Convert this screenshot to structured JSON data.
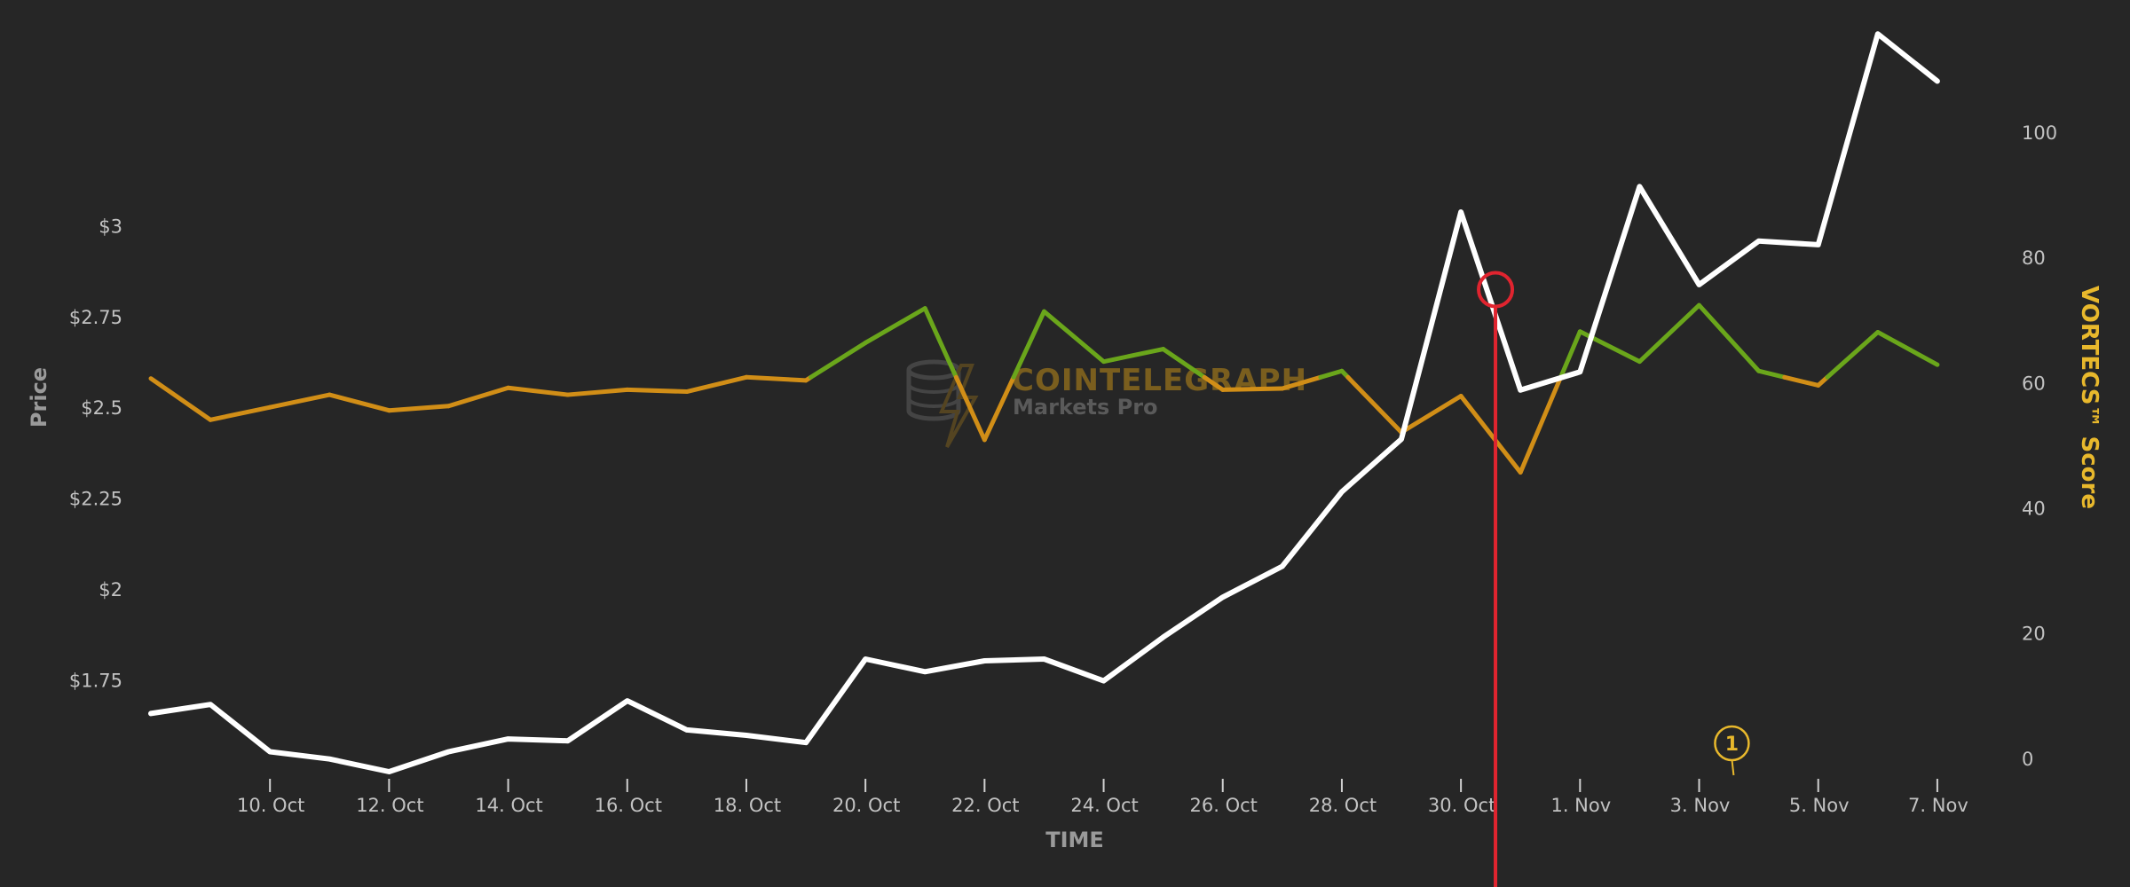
{
  "chart_data": {
    "type": "line",
    "title": "",
    "xlabel": "TIME",
    "ylabel": "Price",
    "y2label": "VORTECS™ Score",
    "x_tick_labels": [
      "10. Oct",
      "12. Oct",
      "14. Oct",
      "16. Oct",
      "18. Oct",
      "20. Oct",
      "22. Oct",
      "24. Oct",
      "26. Oct",
      "28. Oct",
      "30. Oct",
      "1. Nov",
      "3. Nov",
      "5. Nov",
      "7. Nov"
    ],
    "x_range": [
      "2021-10-08",
      "2021-11-08"
    ],
    "y_ticks": [
      {
        "value": 1.75,
        "label": "$1.75"
      },
      {
        "value": 2.0,
        "label": "$2"
      },
      {
        "value": 2.25,
        "label": "$2.25"
      },
      {
        "value": 2.5,
        "label": "$2.5"
      },
      {
        "value": 2.75,
        "label": "$2.75"
      },
      {
        "value": 3.0,
        "label": "$3"
      }
    ],
    "y_range": [
      1.5,
      3.55
    ],
    "y2_ticks": [
      {
        "value": 0,
        "label": "0"
      },
      {
        "value": 20,
        "label": "20"
      },
      {
        "value": 40,
        "label": "40"
      },
      {
        "value": 60,
        "label": "60"
      },
      {
        "value": 80,
        "label": "80"
      },
      {
        "value": 100,
        "label": "100"
      }
    ],
    "y2_range": [
      -2,
      117
    ],
    "series": [
      {
        "axis": "price",
        "color": "#ffffff",
        "points": [
          [
            "2021-10-08",
            1.66
          ],
          [
            "2021-10-09",
            1.685
          ],
          [
            "2021-10-10",
            1.555
          ],
          [
            "2021-10-11",
            1.535
          ],
          [
            "2021-10-12",
            1.5
          ],
          [
            "2021-10-13",
            1.555
          ],
          [
            "2021-10-14",
            1.59
          ],
          [
            "2021-10-15",
            1.585
          ],
          [
            "2021-10-16",
            1.695
          ],
          [
            "2021-10-17",
            1.615
          ],
          [
            "2021-10-18",
            1.6
          ],
          [
            "2021-10-19",
            1.58
          ],
          [
            "2021-10-20",
            1.81
          ],
          [
            "2021-10-21",
            1.775
          ],
          [
            "2021-10-22",
            1.805
          ],
          [
            "2021-10-23",
            1.81
          ],
          [
            "2021-10-24",
            1.75
          ],
          [
            "2021-10-25",
            1.87
          ],
          [
            "2021-10-26",
            1.98
          ],
          [
            "2021-10-27",
            2.065
          ],
          [
            "2021-10-28",
            2.27
          ],
          [
            "2021-10-29",
            2.415
          ],
          [
            "2021-10-30",
            3.04
          ],
          [
            "2021-10-31",
            2.55
          ],
          [
            "2021-11-01",
            2.6
          ],
          [
            "2021-11-02",
            3.11
          ],
          [
            "2021-11-03",
            2.84
          ],
          [
            "2021-11-04",
            2.96
          ],
          [
            "2021-11-05",
            2.95
          ],
          [
            "2021-11-06",
            3.53
          ],
          [
            "2021-11-07",
            3.4
          ]
        ]
      },
      {
        "axis": "score",
        "color_low": "#d18e17",
        "color_high": "#6aa61b",
        "threshold": 61,
        "points": [
          [
            "2021-10-08",
            60.8
          ],
          [
            "2021-10-09",
            54.2
          ],
          [
            "2021-10-10",
            56.2
          ],
          [
            "2021-10-11",
            58.2
          ],
          [
            "2021-10-12",
            55.7
          ],
          [
            "2021-10-13",
            56.4
          ],
          [
            "2021-10-14",
            59.3
          ],
          [
            "2021-10-15",
            58.2
          ],
          [
            "2021-10-16",
            59.0
          ],
          [
            "2021-10-17",
            58.7
          ],
          [
            "2021-10-18",
            61.0
          ],
          [
            "2021-10-19",
            60.5
          ],
          [
            "2021-10-20",
            66.5
          ],
          [
            "2021-10-21",
            72.0
          ],
          [
            "2021-10-22",
            51.0
          ],
          [
            "2021-10-23",
            71.5
          ],
          [
            "2021-10-24",
            63.5
          ],
          [
            "2021-10-25",
            65.5
          ],
          [
            "2021-10-26",
            59.0
          ],
          [
            "2021-10-27",
            59.2
          ],
          [
            "2021-10-28",
            62.0
          ],
          [
            "2021-10-29",
            52.2
          ],
          [
            "2021-10-30",
            58.0
          ],
          [
            "2021-10-31",
            45.8
          ],
          [
            "2021-11-01",
            68.3
          ],
          [
            "2021-11-02",
            63.5
          ],
          [
            "2021-11-03",
            72.5
          ],
          [
            "2021-11-04",
            62.0
          ],
          [
            "2021-11-05",
            59.7
          ],
          [
            "2021-11-06",
            68.2
          ],
          [
            "2021-11-07",
            63.0
          ]
        ]
      }
    ],
    "marker": {
      "date": "2021-10-30",
      "score": 75,
      "color": "#e0242f"
    },
    "flag": {
      "date": "2021-11-03",
      "label": "1",
      "color": "#e8b82c"
    },
    "watermark": {
      "brand": "COINTELEGRAPH",
      "sub": "Markets Pro"
    },
    "grid": false,
    "legend": "none"
  }
}
